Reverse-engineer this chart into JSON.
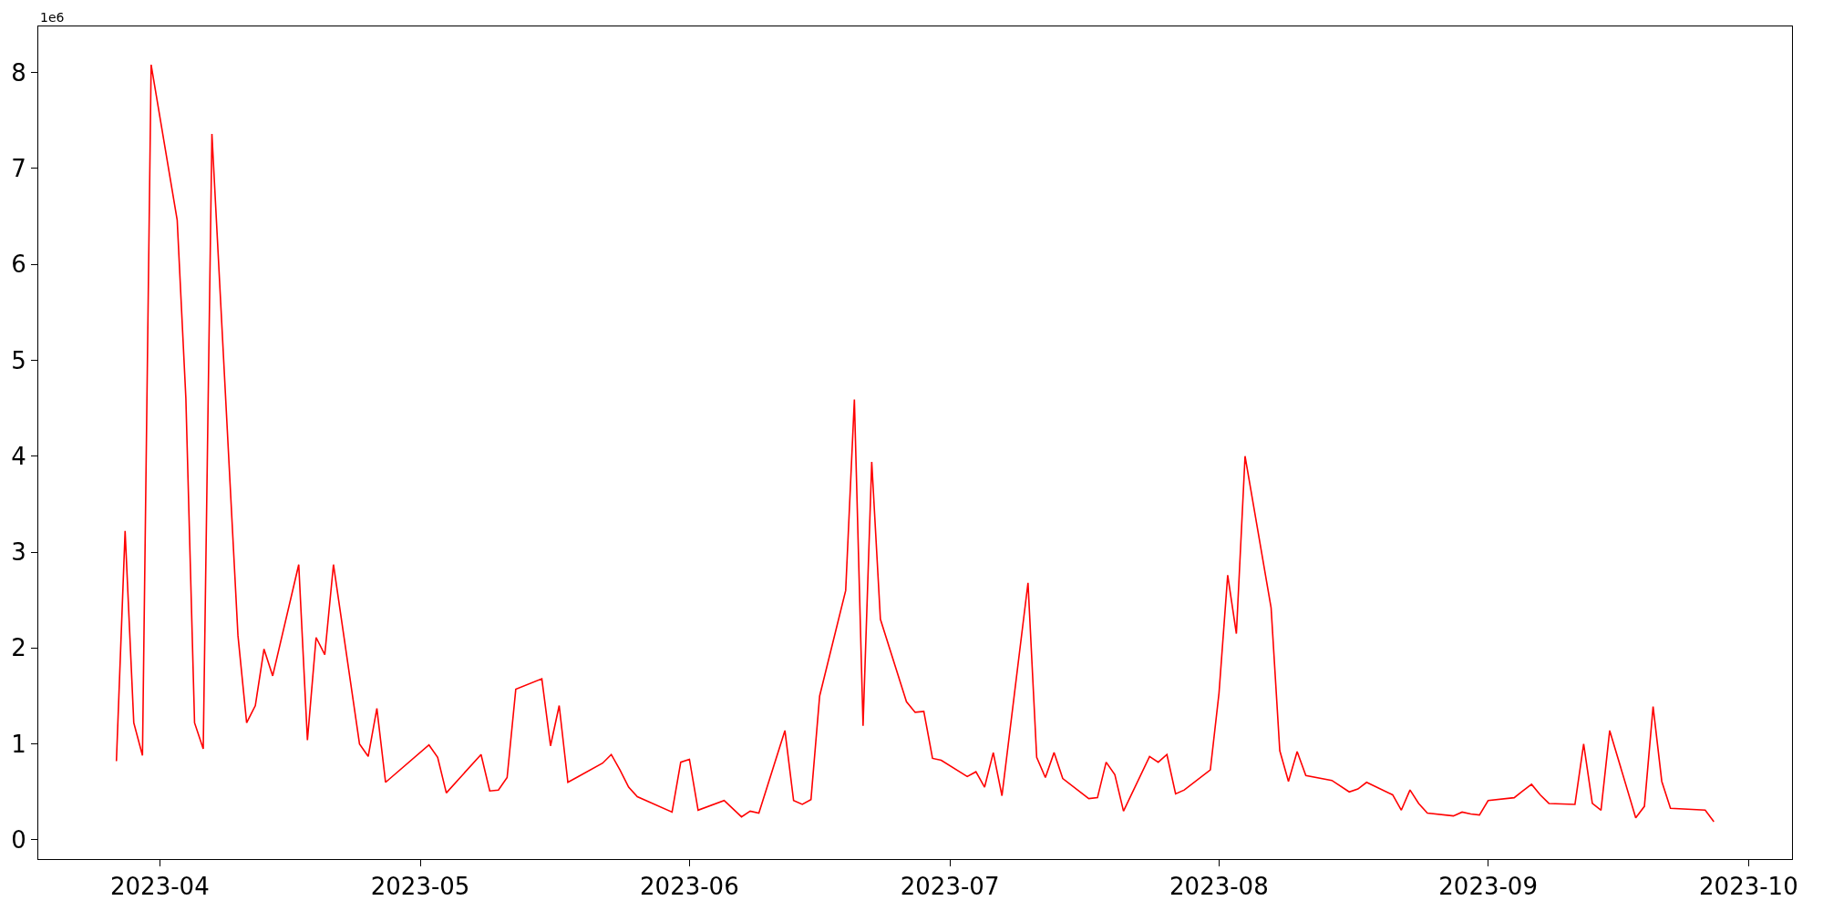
{
  "chart_data": {
    "type": "line",
    "x": [
      "2023-03-27",
      "2023-03-28",
      "2023-03-29",
      "2023-03-30",
      "2023-03-31",
      "2023-04-03",
      "2023-04-04",
      "2023-04-05",
      "2023-04-06",
      "2023-04-07",
      "2023-04-10",
      "2023-04-11",
      "2023-04-12",
      "2023-04-13",
      "2023-04-14",
      "2023-04-17",
      "2023-04-18",
      "2023-04-19",
      "2023-04-20",
      "2023-04-21",
      "2023-04-24",
      "2023-04-25",
      "2023-04-26",
      "2023-04-27",
      "2023-05-02",
      "2023-05-03",
      "2023-05-04",
      "2023-05-08",
      "2023-05-09",
      "2023-05-10",
      "2023-05-11",
      "2023-05-12",
      "2023-05-15",
      "2023-05-16",
      "2023-05-17",
      "2023-05-18",
      "2023-05-19",
      "2023-05-22",
      "2023-05-23",
      "2023-05-24",
      "2023-05-25",
      "2023-05-26",
      "2023-05-30",
      "2023-05-31",
      "2023-06-01",
      "2023-06-02",
      "2023-06-05",
      "2023-06-07",
      "2023-06-08",
      "2023-06-09",
      "2023-06-12",
      "2023-06-13",
      "2023-06-14",
      "2023-06-15",
      "2023-06-16",
      "2023-06-19",
      "2023-06-20",
      "2023-06-21",
      "2023-06-22",
      "2023-06-23",
      "2023-06-26",
      "2023-06-27",
      "2023-06-28",
      "2023-06-29",
      "2023-06-30",
      "2023-07-03",
      "2023-07-04",
      "2023-07-05",
      "2023-07-06",
      "2023-07-07",
      "2023-07-10",
      "2023-07-11",
      "2023-07-12",
      "2023-07-13",
      "2023-07-14",
      "2023-07-17",
      "2023-07-18",
      "2023-07-19",
      "2023-07-20",
      "2023-07-21",
      "2023-07-24",
      "2023-07-25",
      "2023-07-26",
      "2023-07-27",
      "2023-07-28",
      "2023-07-31",
      "2023-08-01",
      "2023-08-02",
      "2023-08-03",
      "2023-08-04",
      "2023-08-07",
      "2023-08-08",
      "2023-08-09",
      "2023-08-10",
      "2023-08-11",
      "2023-08-14",
      "2023-08-16",
      "2023-08-17",
      "2023-08-18",
      "2023-08-21",
      "2023-08-22",
      "2023-08-23",
      "2023-08-24",
      "2023-08-25",
      "2023-08-28",
      "2023-08-29",
      "2023-08-30",
      "2023-08-31",
      "2023-09-01",
      "2023-09-04",
      "2023-09-05",
      "2023-09-06",
      "2023-09-07",
      "2023-09-08",
      "2023-09-11",
      "2023-09-12",
      "2023-09-13",
      "2023-09-14",
      "2023-09-15",
      "2023-09-18",
      "2023-09-19",
      "2023-09-20",
      "2023-09-21",
      "2023-09-22",
      "2023-09-26",
      "2023-09-27"
    ],
    "series": [
      {
        "color": "#ff0000",
        "values": [
          0.82,
          3.22,
          1.22,
          0.88,
          8.08,
          6.46,
          4.6,
          1.22,
          0.95,
          7.36,
          2.13,
          1.22,
          1.4,
          1.99,
          1.71,
          2.87,
          1.04,
          2.11,
          1.93,
          2.87,
          1.0,
          0.87,
          1.37,
          0.6,
          0.99,
          0.86,
          0.49,
          0.89,
          0.51,
          0.52,
          0.65,
          1.57,
          1.68,
          0.98,
          1.4,
          0.6,
          0.65,
          0.8,
          0.89,
          0.73,
          0.55,
          0.45,
          0.29,
          0.81,
          0.84,
          0.31,
          0.41,
          0.24,
          0.3,
          0.28,
          1.14,
          0.41,
          0.37,
          0.42,
          1.5,
          2.6,
          4.59,
          1.19,
          3.94,
          2.3,
          1.44,
          1.33,
          1.34,
          0.85,
          0.83,
          0.66,
          0.71,
          0.55,
          0.91,
          0.46,
          2.68,
          0.86,
          0.65,
          0.91,
          0.64,
          0.43,
          0.44,
          0.81,
          0.68,
          0.3,
          0.87,
          0.81,
          0.89,
          0.48,
          0.52,
          0.73,
          1.53,
          2.76,
          2.15,
          4.0,
          2.42,
          0.93,
          0.61,
          0.92,
          0.67,
          0.62,
          0.5,
          0.53,
          0.6,
          0.47,
          0.31,
          0.52,
          0.38,
          0.28,
          0.25,
          0.29,
          0.27,
          0.26,
          0.41,
          0.44,
          0.51,
          0.58,
          0.47,
          0.38,
          0.37,
          1.0,
          0.38,
          0.31,
          1.14,
          0.23,
          0.35,
          1.39,
          0.61,
          0.33,
          0.31,
          0.19
        ]
      }
    ],
    "xlim": [
      "2023-03-18",
      "2023-10-06"
    ],
    "xticks": [
      {
        "value": "2023-04-01",
        "label": "2023-04"
      },
      {
        "value": "2023-05-01",
        "label": "2023-05"
      },
      {
        "value": "2023-06-01",
        "label": "2023-06"
      },
      {
        "value": "2023-07-01",
        "label": "2023-07"
      },
      {
        "value": "2023-08-01",
        "label": "2023-08"
      },
      {
        "value": "2023-09-01",
        "label": "2023-09"
      },
      {
        "value": "2023-10-01",
        "label": "2023-10"
      }
    ],
    "ylim": [
      -0.2,
      8.48
    ],
    "yticks": [
      0,
      1,
      2,
      3,
      4,
      5,
      6,
      7,
      8
    ],
    "annotations": [
      "1e6"
    ]
  }
}
